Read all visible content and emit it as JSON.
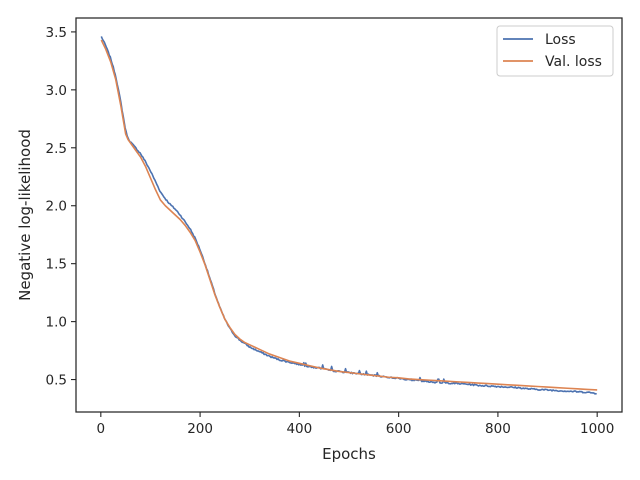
{
  "chart_data": {
    "type": "line",
    "xlabel": "Epochs",
    "ylabel": "Negative log-likelihood",
    "xlim": [
      -50,
      1050
    ],
    "ylim": [
      0.22,
      3.62
    ],
    "xticks": [
      0,
      200,
      400,
      600,
      800,
      1000
    ],
    "yticks": [
      0.5,
      1.0,
      1.5,
      2.0,
      2.5,
      3.0,
      3.5
    ],
    "xtick_labels": [
      "0",
      "200",
      "400",
      "600",
      "800",
      "1000"
    ],
    "ytick_labels": [
      "0.5",
      "1.0",
      "1.5",
      "2.0",
      "2.5",
      "3.0",
      "3.5"
    ],
    "grid": false,
    "legend_position": "top-right",
    "series": [
      {
        "name": "Loss",
        "color": "#4c72b0",
        "noisy": true,
        "x": [
          1,
          10,
          20,
          30,
          40,
          50,
          55,
          60,
          70,
          80,
          90,
          100,
          110,
          120,
          130,
          140,
          150,
          160,
          170,
          180,
          190,
          200,
          210,
          220,
          230,
          240,
          250,
          260,
          270,
          280,
          290,
          300,
          320,
          340,
          360,
          380,
          400,
          420,
          440,
          460,
          480,
          500,
          520,
          540,
          560,
          580,
          600,
          620,
          640,
          660,
          680,
          700,
          720,
          740,
          760,
          780,
          800,
          820,
          840,
          860,
          880,
          900,
          920,
          940,
          960,
          980,
          1000
        ],
        "y": [
          3.46,
          3.38,
          3.27,
          3.12,
          2.9,
          2.65,
          2.58,
          2.55,
          2.5,
          2.45,
          2.38,
          2.3,
          2.21,
          2.12,
          2.06,
          2.01,
          1.97,
          1.92,
          1.86,
          1.8,
          1.72,
          1.62,
          1.5,
          1.37,
          1.24,
          1.12,
          1.02,
          0.94,
          0.88,
          0.84,
          0.81,
          0.78,
          0.74,
          0.7,
          0.67,
          0.65,
          0.63,
          0.61,
          0.6,
          0.58,
          0.57,
          0.56,
          0.55,
          0.54,
          0.53,
          0.52,
          0.51,
          0.5,
          0.49,
          0.48,
          0.475,
          0.47,
          0.465,
          0.46,
          0.45,
          0.445,
          0.44,
          0.435,
          0.43,
          0.42,
          0.415,
          0.41,
          0.405,
          0.4,
          0.395,
          0.39,
          0.38
        ]
      },
      {
        "name": "Val. loss",
        "color": "#dd8452",
        "noisy": false,
        "x": [
          1,
          10,
          20,
          30,
          40,
          50,
          55,
          60,
          70,
          80,
          90,
          100,
          110,
          120,
          130,
          140,
          150,
          160,
          170,
          180,
          190,
          200,
          210,
          220,
          230,
          240,
          250,
          260,
          270,
          280,
          290,
          300,
          320,
          340,
          360,
          380,
          400,
          420,
          440,
          460,
          480,
          500,
          520,
          540,
          560,
          580,
          600,
          620,
          640,
          660,
          680,
          700,
          720,
          740,
          760,
          780,
          800,
          820,
          840,
          860,
          880,
          900,
          920,
          940,
          960,
          980,
          1000
        ],
        "y": [
          3.43,
          3.35,
          3.24,
          3.09,
          2.87,
          2.62,
          2.57,
          2.54,
          2.48,
          2.42,
          2.34,
          2.24,
          2.14,
          2.05,
          2.0,
          1.96,
          1.92,
          1.88,
          1.83,
          1.77,
          1.7,
          1.6,
          1.49,
          1.36,
          1.23,
          1.12,
          1.02,
          0.95,
          0.89,
          0.85,
          0.82,
          0.8,
          0.76,
          0.72,
          0.69,
          0.66,
          0.64,
          0.62,
          0.6,
          0.585,
          0.57,
          0.56,
          0.55,
          0.54,
          0.53,
          0.52,
          0.515,
          0.505,
          0.5,
          0.495,
          0.49,
          0.485,
          0.48,
          0.475,
          0.47,
          0.465,
          0.46,
          0.455,
          0.45,
          0.445,
          0.44,
          0.435,
          0.43,
          0.425,
          0.42,
          0.415,
          0.41
        ]
      }
    ]
  }
}
